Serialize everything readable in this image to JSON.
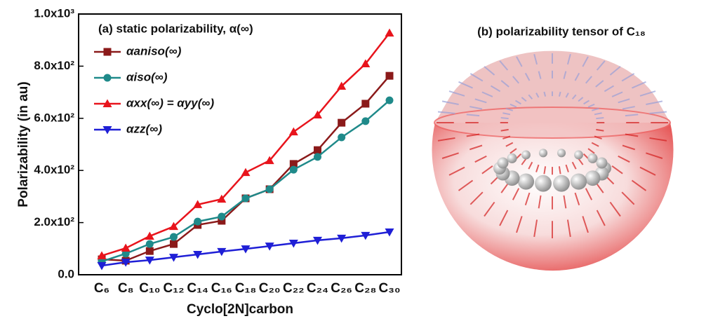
{
  "chart_data": {
    "type": "line",
    "title": "(a) static polarizability, α(∞)",
    "x_label": "Cyclo[2N]carbon",
    "y_label": "Polarizability (in au)",
    "categories": [
      "C₆",
      "C₈",
      "C₁₀",
      "C₁₂",
      "C₁₄",
      "C₁₆",
      "C₁₈",
      "C₂₀",
      "C₂₂",
      "C₂₄",
      "C₂₆",
      "C₂₈",
      "C₃₀"
    ],
    "series": [
      {
        "name": "αaniso(∞)",
        "color": "#8b1a1a",
        "marker": "square",
        "values": [
          59,
          54,
          91,
          118,
          191,
          207,
          293,
          328,
          425,
          478,
          583,
          656,
          763
        ]
      },
      {
        "name": "αiso(∞)",
        "color": "#1f8a8a",
        "marker": "circle",
        "values": [
          51,
          81,
          118,
          145,
          204,
          223,
          293,
          328,
          403,
          452,
          527,
          589,
          669
        ]
      },
      {
        "name": "αxx(∞) = αyy(∞)",
        "color": "#e8141c",
        "marker": "triangle-up",
        "values": [
          73,
          102,
          148,
          185,
          269,
          290,
          392,
          438,
          548,
          613,
          723,
          809,
          927
        ]
      },
      {
        "name": "αzz(∞)",
        "color": "#1f1fd6",
        "marker": "triangle-down",
        "values": [
          35,
          48,
          56,
          67,
          78,
          89,
          99,
          110,
          121,
          132,
          140,
          151,
          164
        ]
      }
    ],
    "ylim": [
      0,
      1000
    ],
    "yticks": [
      {
        "value": 0,
        "label": "0.0"
      },
      {
        "value": 200,
        "label": "2.0x10²"
      },
      {
        "value": 400,
        "label": "4.0x10²"
      },
      {
        "value": 600,
        "label": "6.0x10²"
      },
      {
        "value": 800,
        "label": "8.0x10²"
      },
      {
        "value": 1000,
        "label": "1.0x10³"
      }
    ],
    "grid": false,
    "legend": "top-left"
  },
  "panel_b": {
    "title": "(b) polarizability tensor of C₁₈"
  }
}
